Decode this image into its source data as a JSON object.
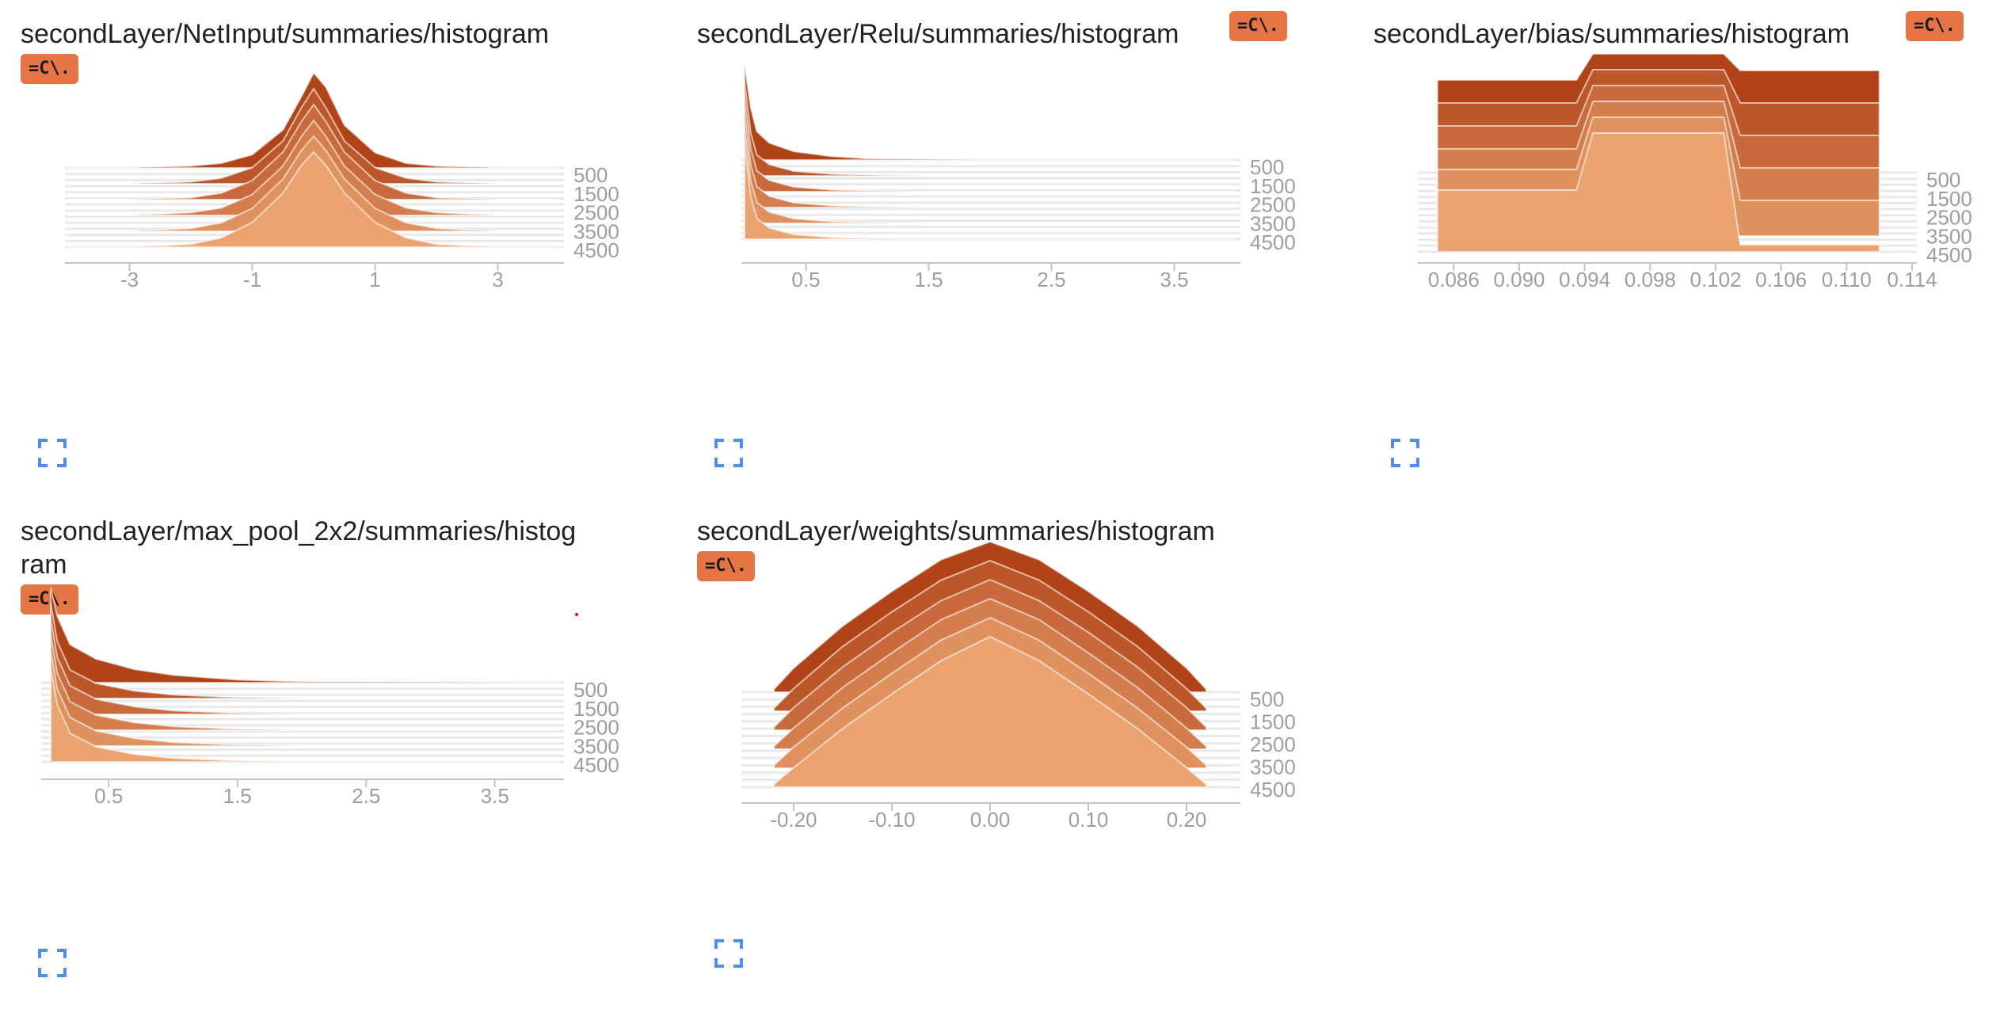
{
  "colors": {
    "back_series": "#b04418",
    "front_series": "#eba46f",
    "badge": "#e57544",
    "expand_icon": "#4d8ef0",
    "axis": "#c4c4c4",
    "tick_text": "#9e9e9e"
  },
  "badge_label": "=C\\.",
  "cards": [
    {
      "title": "secondLayer/NetInput/summaries/histogram",
      "badge": "=C\\.",
      "expand_icon": "fullscreen-icon"
    },
    {
      "title": "secondLayer/Relu/summaries/histogram",
      "badge": "=C\\.",
      "expand_icon": "fullscreen-icon"
    },
    {
      "title": "secondLayer/bias/summaries/histogram",
      "badge": "=C\\.",
      "expand_icon": "fullscreen-icon"
    },
    {
      "title_line1": "secondLayer/max_pool_2x2/summaries/histog",
      "title_line2": "ram",
      "badge": "=C\\.",
      "expand_icon": "fullscreen-icon"
    },
    {
      "title": "secondLayer/weights/summaries/histogram",
      "badge": "=C\\.",
      "expand_icon": "fullscreen-icon"
    }
  ],
  "chart_data": [
    {
      "type": "area",
      "name": "netinput",
      "xlim": [
        -4,
        4
      ],
      "x_ticks": [
        "-3",
        "-1",
        "1",
        "3"
      ],
      "x_tick_values": [
        -3,
        -1,
        1,
        3
      ],
      "step_labels": [
        "500",
        "1500",
        "2500",
        "3500",
        "4500"
      ],
      "steps": [
        0,
        1000,
        2000,
        3000,
        4000,
        5000
      ],
      "x": [
        -4,
        -3,
        -2,
        -1.5,
        -1,
        -0.5,
        -0.2,
        0,
        0.2,
        0.5,
        1,
        1.5,
        2,
        3,
        4
      ],
      "series": [
        {
          "step": 0,
          "values": [
            0,
            0,
            0.02,
            0.05,
            0.14,
            0.4,
            0.75,
            1.0,
            0.85,
            0.45,
            0.16,
            0.05,
            0.02,
            0,
            0
          ]
        },
        {
          "step": 1000,
          "values": [
            0,
            0,
            0.02,
            0.06,
            0.17,
            0.45,
            0.8,
            1.0,
            0.8,
            0.45,
            0.17,
            0.06,
            0.02,
            0,
            0
          ]
        },
        {
          "step": 2000,
          "values": [
            0,
            0,
            0.02,
            0.07,
            0.2,
            0.5,
            0.82,
            1.0,
            0.82,
            0.5,
            0.2,
            0.07,
            0.02,
            0,
            0
          ]
        },
        {
          "step": 3000,
          "values": [
            0,
            0,
            0.03,
            0.08,
            0.22,
            0.52,
            0.83,
            1.0,
            0.83,
            0.52,
            0.22,
            0.08,
            0.03,
            0,
            0
          ]
        },
        {
          "step": 4000,
          "values": [
            0,
            0,
            0.03,
            0.09,
            0.24,
            0.55,
            0.85,
            1.0,
            0.85,
            0.55,
            0.24,
            0.09,
            0.03,
            0,
            0
          ]
        },
        {
          "step": 5000,
          "values": [
            0,
            0,
            0.03,
            0.1,
            0.26,
            0.57,
            0.86,
            1.0,
            0.86,
            0.57,
            0.26,
            0.1,
            0.03,
            0,
            0
          ]
        }
      ]
    },
    {
      "type": "area",
      "name": "relu",
      "xlim": [
        0,
        4
      ],
      "x_ticks": [
        "0.5",
        "1.5",
        "2.5",
        "3.5"
      ],
      "x_tick_values": [
        0.5,
        1.5,
        2.5,
        3.5
      ],
      "step_labels": [
        "500",
        "1500",
        "2500",
        "3500",
        "4500"
      ],
      "steps": [
        0,
        1000,
        2000,
        3000,
        4000,
        5000
      ],
      "x": [
        0,
        0.05,
        0.1,
        0.2,
        0.4,
        0.7,
        1.0,
        1.5,
        2.0,
        4.0
      ],
      "series": [
        {
          "step": 0,
          "values": [
            1.0,
            0.55,
            0.3,
            0.18,
            0.09,
            0.04,
            0.015,
            0.005,
            0,
            0
          ]
        },
        {
          "step": 1000,
          "values": [
            1.0,
            0.45,
            0.22,
            0.12,
            0.05,
            0.02,
            0.006,
            0,
            0,
            0
          ]
        },
        {
          "step": 2000,
          "values": [
            1.0,
            0.45,
            0.22,
            0.12,
            0.05,
            0.02,
            0.006,
            0,
            0,
            0
          ]
        },
        {
          "step": 3000,
          "values": [
            1.0,
            0.45,
            0.22,
            0.12,
            0.05,
            0.02,
            0.006,
            0,
            0,
            0
          ]
        },
        {
          "step": 4000,
          "values": [
            1.0,
            0.45,
            0.22,
            0.12,
            0.05,
            0.02,
            0.006,
            0,
            0,
            0
          ]
        },
        {
          "step": 5000,
          "values": [
            1.0,
            0.45,
            0.22,
            0.12,
            0.05,
            0.02,
            0.006,
            0,
            0,
            0
          ]
        }
      ]
    },
    {
      "type": "area",
      "name": "bias",
      "xlim": [
        0.084,
        0.114
      ],
      "x_ticks": [
        "0.086",
        "0.090",
        "0.094",
        "0.098",
        "0.102",
        "0.106",
        "0.110",
        "0.114"
      ],
      "x_tick_values": [
        0.086,
        0.09,
        0.094,
        0.098,
        0.102,
        0.106,
        0.11,
        0.114
      ],
      "step_labels": [
        "500",
        "1500",
        "2500",
        "3500",
        "4500"
      ],
      "steps": [
        0,
        1000,
        2000,
        3000,
        4000,
        5000
      ],
      "x": [
        0.085,
        0.0935,
        0.0945,
        0.1025,
        0.1035,
        0.112
      ],
      "series": [
        {
          "step": 0,
          "values": [
            0.78,
            0.78,
            1.0,
            1.0,
            0.86,
            0.86
          ]
        },
        {
          "step": 1000,
          "values": [
            0.72,
            0.72,
            1.0,
            1.0,
            0.72,
            0.72
          ]
        },
        {
          "step": 2000,
          "values": [
            0.66,
            0.66,
            1.0,
            1.0,
            0.58,
            0.58
          ]
        },
        {
          "step": 3000,
          "values": [
            0.6,
            0.6,
            1.0,
            1.0,
            0.44,
            0.44
          ]
        },
        {
          "step": 4000,
          "values": [
            0.56,
            0.56,
            1.0,
            1.0,
            0.3,
            0.3
          ]
        },
        {
          "step": 5000,
          "values": [
            0.52,
            0.52,
            1.0,
            1.0,
            0.06,
            0.06
          ]
        }
      ]
    },
    {
      "type": "area",
      "name": "maxpool",
      "xlim": [
        0,
        4
      ],
      "x_ticks": [
        "0.5",
        "1.5",
        "2.5",
        "3.5"
      ],
      "x_tick_values": [
        0.5,
        1.5,
        2.5,
        3.5
      ],
      "step_labels": [
        "500",
        "1500",
        "2500",
        "3500",
        "4500"
      ],
      "steps": [
        0,
        1000,
        2000,
        3000,
        4000,
        5000
      ],
      "x": [
        0.05,
        0.1,
        0.2,
        0.4,
        0.7,
        1.0,
        1.5,
        2.0,
        4.0
      ],
      "series": [
        {
          "step": 0,
          "values": [
            1.0,
            0.7,
            0.4,
            0.25,
            0.14,
            0.08,
            0.03,
            0.01,
            0
          ]
        },
        {
          "step": 1000,
          "values": [
            1.0,
            0.6,
            0.3,
            0.16,
            0.08,
            0.04,
            0.01,
            0,
            0
          ]
        },
        {
          "step": 2000,
          "values": [
            1.0,
            0.6,
            0.3,
            0.16,
            0.08,
            0.04,
            0.01,
            0,
            0
          ]
        },
        {
          "step": 3000,
          "values": [
            1.0,
            0.6,
            0.3,
            0.16,
            0.08,
            0.04,
            0.01,
            0,
            0
          ]
        },
        {
          "step": 4000,
          "values": [
            1.0,
            0.6,
            0.3,
            0.16,
            0.08,
            0.04,
            0.01,
            0,
            0
          ]
        },
        {
          "step": 5000,
          "values": [
            1.0,
            0.6,
            0.3,
            0.16,
            0.08,
            0.04,
            0.01,
            0,
            0
          ]
        }
      ]
    },
    {
      "type": "area",
      "name": "weights",
      "xlim": [
        -0.25,
        0.25
      ],
      "x_ticks": [
        "-0.20",
        "-0.10",
        "0.00",
        "0.10",
        "0.20"
      ],
      "x_tick_values": [
        -0.2,
        -0.1,
        0.0,
        0.1,
        0.2
      ],
      "step_labels": [
        "500",
        "1500",
        "2500",
        "3500",
        "4500"
      ],
      "steps": [
        0,
        1000,
        2000,
        3000,
        4000,
        5000
      ],
      "x": [
        -0.22,
        -0.2,
        -0.15,
        -0.1,
        -0.05,
        0.0,
        0.05,
        0.1,
        0.15,
        0.2,
        0.22
      ],
      "series": [
        {
          "step": 0,
          "values": [
            0.02,
            0.16,
            0.44,
            0.67,
            0.88,
            1.0,
            0.88,
            0.67,
            0.44,
            0.16,
            0.02
          ]
        },
        {
          "step": 1000,
          "values": [
            0.02,
            0.15,
            0.43,
            0.66,
            0.87,
            1.0,
            0.87,
            0.66,
            0.43,
            0.15,
            0.02
          ]
        },
        {
          "step": 2000,
          "values": [
            0.02,
            0.15,
            0.42,
            0.65,
            0.86,
            1.0,
            0.86,
            0.65,
            0.42,
            0.15,
            0.02
          ]
        },
        {
          "step": 3000,
          "values": [
            0.02,
            0.14,
            0.41,
            0.64,
            0.86,
            1.0,
            0.86,
            0.64,
            0.41,
            0.14,
            0.02
          ]
        },
        {
          "step": 4000,
          "values": [
            0.02,
            0.14,
            0.4,
            0.63,
            0.85,
            1.0,
            0.85,
            0.63,
            0.4,
            0.14,
            0.02
          ]
        },
        {
          "step": 5000,
          "values": [
            0.02,
            0.13,
            0.39,
            0.62,
            0.84,
            1.0,
            0.84,
            0.62,
            0.39,
            0.13,
            0.02
          ]
        }
      ]
    }
  ]
}
